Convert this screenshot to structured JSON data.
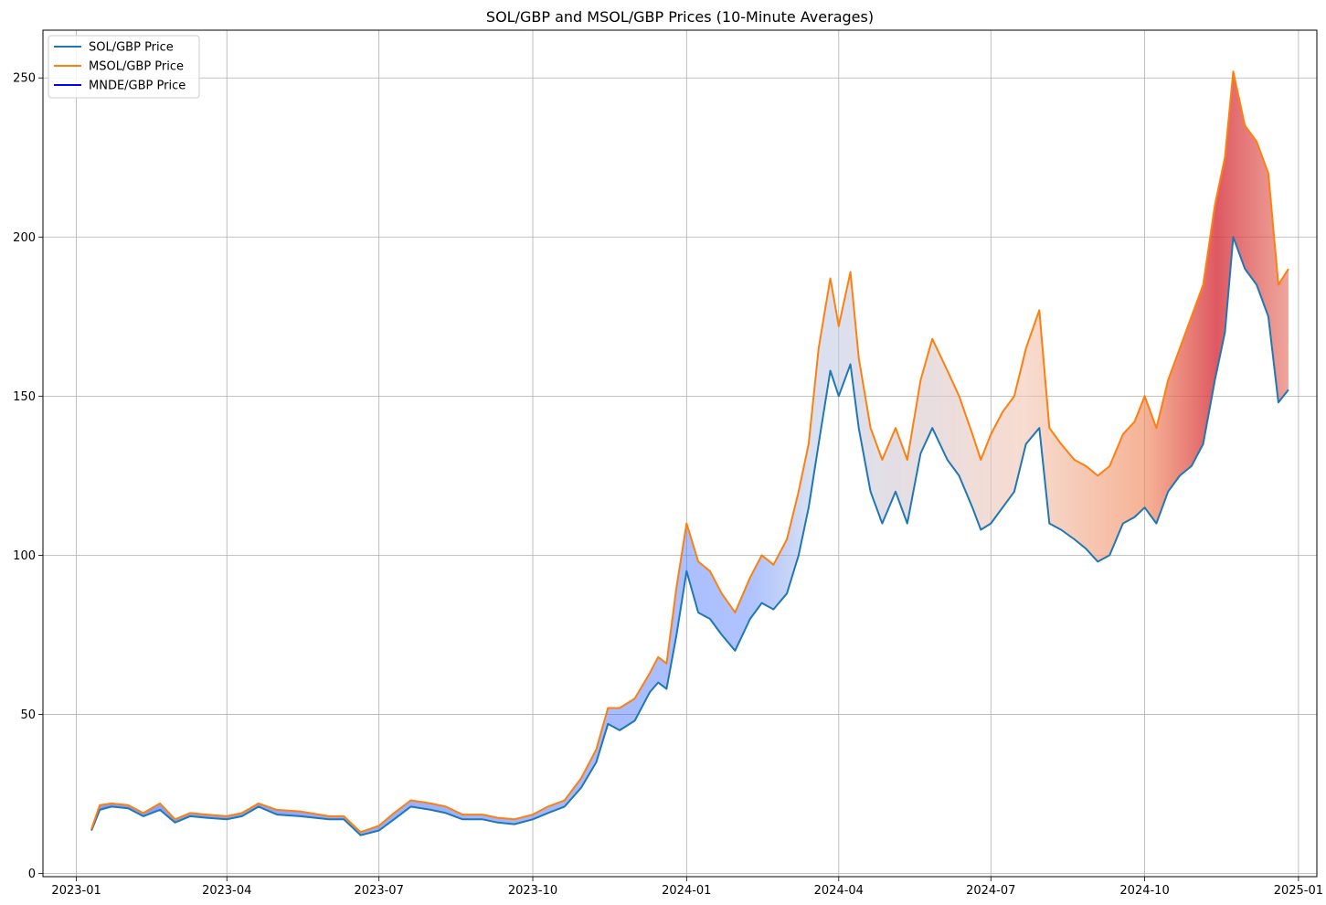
{
  "chart_data": {
    "type": "line",
    "title": "SOL/GBP and MSOL/GBP Prices (10-Minute Averages)",
    "xlabel": "",
    "ylabel": "",
    "xlim": [
      "2022-12-12",
      "2025-01-12"
    ],
    "ylim": [
      -1,
      265
    ],
    "x_ticks": [
      "2023-01",
      "2023-04",
      "2023-07",
      "2023-10",
      "2024-01",
      "2024-04",
      "2024-07",
      "2024-10",
      "2025-01"
    ],
    "y_ticks": [
      0,
      50,
      100,
      150,
      200,
      250
    ],
    "grid": true,
    "legend_position": "top-left",
    "fill_between": "SOL/GBP Price to MSOL/GBP Price, shaded from blue (small spread) to red (large spread)",
    "series": [
      {
        "name": "SOL/GBP Price",
        "color": "#1f77b4",
        "x": [
          "2023-01-10",
          "2023-01-15",
          "2023-01-22",
          "2023-02-01",
          "2023-02-10",
          "2023-02-20",
          "2023-03-01",
          "2023-03-10",
          "2023-03-20",
          "2023-04-01",
          "2023-04-10",
          "2023-04-20",
          "2023-05-01",
          "2023-05-15",
          "2023-06-01",
          "2023-06-10",
          "2023-06-20",
          "2023-07-01",
          "2023-07-10",
          "2023-07-20",
          "2023-08-01",
          "2023-08-10",
          "2023-08-20",
          "2023-09-01",
          "2023-09-10",
          "2023-09-20",
          "2023-10-01",
          "2023-10-10",
          "2023-10-20",
          "2023-10-30",
          "2023-11-08",
          "2023-11-15",
          "2023-11-22",
          "2023-12-01",
          "2023-12-10",
          "2023-12-15",
          "2023-12-20",
          "2023-12-26",
          "2024-01-01",
          "2024-01-08",
          "2024-01-15",
          "2024-01-22",
          "2024-01-30",
          "2024-02-08",
          "2024-02-15",
          "2024-02-22",
          "2024-03-01",
          "2024-03-08",
          "2024-03-14",
          "2024-03-20",
          "2024-03-27",
          "2024-04-01",
          "2024-04-08",
          "2024-04-13",
          "2024-04-20",
          "2024-04-27",
          "2024-05-05",
          "2024-05-12",
          "2024-05-20",
          "2024-05-27",
          "2024-06-05",
          "2024-06-12",
          "2024-06-20",
          "2024-06-25",
          "2024-07-01",
          "2024-07-08",
          "2024-07-15",
          "2024-07-22",
          "2024-07-30",
          "2024-08-05",
          "2024-08-12",
          "2024-08-20",
          "2024-08-27",
          "2024-09-03",
          "2024-09-10",
          "2024-09-18",
          "2024-09-25",
          "2024-10-01",
          "2024-10-08",
          "2024-10-15",
          "2024-10-22",
          "2024-10-29",
          "2024-11-05",
          "2024-11-12",
          "2024-11-18",
          "2024-11-23",
          "2024-11-30",
          "2024-12-07",
          "2024-12-14",
          "2024-12-20",
          "2024-12-26"
        ],
        "values": [
          13.5,
          20,
          21,
          20.5,
          18,
          20,
          16,
          18,
          17.5,
          17,
          18,
          21,
          18.5,
          18,
          17,
          17,
          12,
          13.5,
          17,
          21,
          20,
          19,
          17,
          17,
          16,
          15.5,
          17,
          19,
          21,
          27,
          35,
          47,
          45,
          48,
          57,
          60,
          58,
          75,
          95,
          82,
          80,
          75,
          70,
          80,
          85,
          83,
          88,
          100,
          115,
          135,
          158,
          150,
          160,
          140,
          120,
          110,
          120,
          110,
          132,
          140,
          130,
          125,
          115,
          108,
          110,
          115,
          120,
          135,
          140,
          110,
          108,
          105,
          102,
          98,
          100,
          110,
          112,
          115,
          110,
          120,
          125,
          128,
          135,
          155,
          170,
          200,
          190,
          185,
          175,
          148,
          152
        ]
      },
      {
        "name": "MSOL/GBP Price",
        "color": "#ff7f0e",
        "x": [
          "2023-01-10",
          "2023-01-15",
          "2023-01-22",
          "2023-02-01",
          "2023-02-10",
          "2023-02-20",
          "2023-03-01",
          "2023-03-10",
          "2023-03-20",
          "2023-04-01",
          "2023-04-10",
          "2023-04-20",
          "2023-05-01",
          "2023-05-15",
          "2023-06-01",
          "2023-06-10",
          "2023-06-20",
          "2023-07-01",
          "2023-07-10",
          "2023-07-20",
          "2023-08-01",
          "2023-08-10",
          "2023-08-20",
          "2023-09-01",
          "2023-09-10",
          "2023-09-20",
          "2023-10-01",
          "2023-10-10",
          "2023-10-20",
          "2023-10-30",
          "2023-11-08",
          "2023-11-15",
          "2023-11-22",
          "2023-12-01",
          "2023-12-10",
          "2023-12-15",
          "2023-12-20",
          "2023-12-26",
          "2024-01-01",
          "2024-01-08",
          "2024-01-15",
          "2024-01-22",
          "2024-01-30",
          "2024-02-08",
          "2024-02-15",
          "2024-02-22",
          "2024-03-01",
          "2024-03-08",
          "2024-03-14",
          "2024-03-20",
          "2024-03-27",
          "2024-04-01",
          "2024-04-08",
          "2024-04-13",
          "2024-04-20",
          "2024-04-27",
          "2024-05-05",
          "2024-05-12",
          "2024-05-20",
          "2024-05-27",
          "2024-06-05",
          "2024-06-12",
          "2024-06-20",
          "2024-06-25",
          "2024-07-01",
          "2024-07-08",
          "2024-07-15",
          "2024-07-22",
          "2024-07-30",
          "2024-08-05",
          "2024-08-12",
          "2024-08-20",
          "2024-08-27",
          "2024-09-03",
          "2024-09-10",
          "2024-09-18",
          "2024-09-25",
          "2024-10-01",
          "2024-10-08",
          "2024-10-15",
          "2024-10-22",
          "2024-10-29",
          "2024-11-05",
          "2024-11-12",
          "2024-11-18",
          "2024-11-23",
          "2024-11-30",
          "2024-12-07",
          "2024-12-14",
          "2024-12-20",
          "2024-12-26"
        ],
        "values": [
          14,
          21.5,
          22,
          21.5,
          19,
          22,
          17,
          19,
          18.5,
          18,
          19,
          22,
          20,
          19.5,
          18,
          18,
          13,
          15,
          19,
          23,
          22,
          21,
          18.5,
          18.5,
          17.5,
          17,
          18.5,
          21,
          23,
          30,
          39,
          52,
          52,
          55,
          63,
          68,
          66,
          90,
          110,
          98,
          95,
          88,
          82,
          93,
          100,
          97,
          105,
          120,
          135,
          165,
          187,
          172,
          189,
          162,
          140,
          130,
          140,
          130,
          155,
          168,
          158,
          150,
          138,
          130,
          138,
          145,
          150,
          165,
          177,
          140,
          135,
          130,
          128,
          125,
          128,
          138,
          142,
          150,
          140,
          155,
          165,
          175,
          185,
          210,
          225,
          252,
          235,
          230,
          220,
          185,
          190
        ]
      },
      {
        "name": "MNDE/GBP Price",
        "color": "#0000ff",
        "x": [],
        "values": []
      }
    ]
  }
}
